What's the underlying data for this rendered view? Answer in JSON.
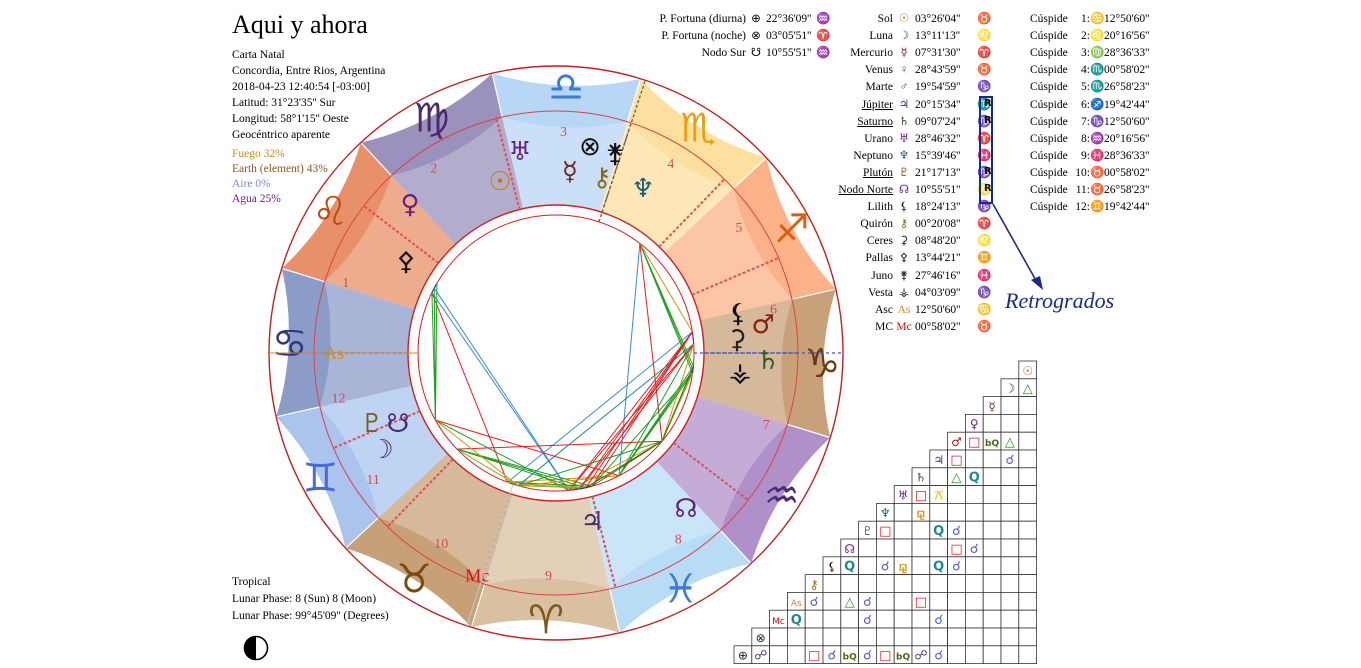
{
  "header": {
    "title": "Aqui y ahora",
    "lines": [
      "Carta Natal",
      "Concordia, Entre Rios, Argentina",
      "2018-04-23 12:40:54 [-03:00]",
      "Latitud: 31°23'35'' Sur",
      "Longitud: 58°1'15'' Oeste",
      "Geocéntrico aparente"
    ]
  },
  "elements": [
    {
      "label": "Fuego 32%",
      "color": "#d08a1e",
      "value": 32
    },
    {
      "label": "Earth (element) 43%",
      "color": "#8a5a1e",
      "value": 43
    },
    {
      "label": "Aire 0%",
      "color": "#7a8ad8",
      "value": 0
    },
    {
      "label": "Agua 25%",
      "color": "#6a2080",
      "value": 25
    }
  ],
  "footer": {
    "lines": [
      "Tropical",
      "Lunar Phase: 8 (Sun) 8 (Moon)",
      "Lunar Phase: 99°45'09'' (Degrees)"
    ]
  },
  "points_table": [
    {
      "name": "P. Fortuna (diurna)",
      "glyph": "⊕",
      "pos": "22°36'09''",
      "sign": "♒",
      "sign_color": "#6a8ad8"
    },
    {
      "name": "P. Fortuna (noche)",
      "glyph": "⊗",
      "pos": "03°05'51''",
      "sign": "♈",
      "sign_color": "#d08a1e"
    },
    {
      "name": "Nodo Sur",
      "glyph": "☋",
      "pos": "10°55'51''",
      "sign": "♒",
      "sign_color": "#6a2080"
    }
  ],
  "planets_table": [
    {
      "name": "Sol",
      "glyph": "☉",
      "glyph_color": "#c87a10",
      "pos": "03°26'04''",
      "sign": "♉",
      "sign_color": "#8a5a1e",
      "retro": false
    },
    {
      "name": "Luna",
      "glyph": "☽",
      "glyph_color": "#4a2a7a",
      "pos": "13°11'13''",
      "sign": "♌",
      "sign_color": "#c87a10",
      "retro": false
    },
    {
      "name": "Mercurio",
      "glyph": "☿",
      "glyph_color": "#6a2a1a",
      "pos": "07°31'30''",
      "sign": "♈",
      "sign_color": "#c87a10",
      "retro": false
    },
    {
      "name": "Venus",
      "glyph": "♀",
      "glyph_color": "#6a2080",
      "pos": "28°43'59''",
      "sign": "♉",
      "sign_color": "#8a5a1e",
      "retro": false
    },
    {
      "name": "Marte",
      "glyph": "♂",
      "glyph_color": "#8a2010",
      "pos": "19°54'59''",
      "sign": "♑",
      "sign_color": "#8a5a1e",
      "retro": false
    },
    {
      "name": "Júpiter",
      "glyph": "♃",
      "glyph_color": "#4a2a6a",
      "pos": "20°15'34''",
      "sign": "♏",
      "sign_color": "#6a8ad8",
      "retro": true
    },
    {
      "name": "Saturno",
      "glyph": "♄",
      "glyph_color": "#2a5a2a",
      "pos": "09°07'24''",
      "sign": "♑",
      "sign_color": "#8a5a1e",
      "retro": true
    },
    {
      "name": "Urano",
      "glyph": "♅",
      "glyph_color": "#6a2080",
      "pos": "28°46'32''",
      "sign": "♈",
      "sign_color": "#c87a10",
      "retro": false
    },
    {
      "name": "Neptuno",
      "glyph": "♆",
      "glyph_color": "#1a5a7a",
      "pos": "15°39'46''",
      "sign": "♓",
      "sign_color": "#6a8ad8",
      "retro": false
    },
    {
      "name": "Plutón",
      "glyph": "♇",
      "glyph_color": "#8a5a1e",
      "pos": "21°17'13''",
      "sign": "♑",
      "sign_color": "#8a5a1e",
      "retro": true
    },
    {
      "name": "Nodo Norte",
      "glyph": "☊",
      "glyph_color": "#6a2080",
      "pos": "10°55'51''",
      "sign": "♌",
      "sign_color": "#c87a10",
      "retro": true
    },
    {
      "name": "Lilith",
      "glyph": "⚸",
      "glyph_color": "#222222",
      "pos": "18°24'13''",
      "sign": "♑",
      "sign_color": "#8a5a1e",
      "retro": false
    },
    {
      "name": "Quirón",
      "glyph": "⚷",
      "glyph_color": "#8a6a10",
      "pos": "00°20'08''",
      "sign": "♈",
      "sign_color": "#c87a10",
      "retro": false
    },
    {
      "name": "Ceres",
      "glyph": "⚳",
      "glyph_color": "#222222",
      "pos": "08°48'20''",
      "sign": "♌",
      "sign_color": "#c87a10",
      "retro": false
    },
    {
      "name": "Pallas",
      "glyph": "⚴",
      "glyph_color": "#222222",
      "pos": "13°44'21''",
      "sign": "♊",
      "sign_color": "#6a8ad8",
      "retro": false
    },
    {
      "name": "Juno",
      "glyph": "⚵",
      "glyph_color": "#222222",
      "pos": "27°46'16''",
      "sign": "♓",
      "sign_color": "#6a8ad8",
      "retro": false
    },
    {
      "name": "Vesta",
      "glyph": "⚶",
      "glyph_color": "#222222",
      "pos": "04°03'09''",
      "sign": "♑",
      "sign_color": "#8a5a1e",
      "retro": false
    },
    {
      "name": "Asc",
      "glyph": "As",
      "glyph_color": "#d08a1e",
      "pos": "12°50'60''",
      "sign": "♋",
      "sign_color": "#6a8ad8",
      "retro": false
    },
    {
      "name": "MC",
      "glyph": "Mc",
      "glyph_color": "#d01010",
      "pos": "00°58'02''",
      "sign": "♉",
      "sign_color": "#8a5a1e",
      "retro": false
    }
  ],
  "retro_marker": "R",
  "retro_label": "Retrogrados",
  "cusps_table": [
    {
      "label": "Cúspide",
      "num": "1:",
      "sign": "♋",
      "sign_color": "#6a8ad8",
      "pos": "12°50'60''"
    },
    {
      "label": "Cúspide",
      "num": "2:",
      "sign": "♌",
      "sign_color": "#c87a10",
      "pos": "20°16'56''"
    },
    {
      "label": "Cúspide",
      "num": "3:",
      "sign": "♍",
      "sign_color": "#8a5a1e",
      "pos": "28°36'33''"
    },
    {
      "label": "Cúspide",
      "num": "4:",
      "sign": "♏",
      "sign_color": "#c87a10",
      "pos": "00°58'02''"
    },
    {
      "label": "Cúspide",
      "num": "5:",
      "sign": "♏",
      "sign_color": "#c87a10",
      "pos": "26°58'23''"
    },
    {
      "label": "Cúspide",
      "num": "6:",
      "sign": "♐",
      "sign_color": "#c87a10",
      "pos": "19°42'44''"
    },
    {
      "label": "Cúspide",
      "num": "7:",
      "sign": "♑",
      "sign_color": "#8a5a1e",
      "pos": "12°50'60''"
    },
    {
      "label": "Cúspide",
      "num": "8:",
      "sign": "♒",
      "sign_color": "#6a2080",
      "pos": "20°16'56''"
    },
    {
      "label": "Cúspide",
      "num": "9:",
      "sign": "♓",
      "sign_color": "#6a8ad8",
      "pos": "28°36'33''"
    },
    {
      "label": "Cúspide",
      "num": "10:",
      "sign": "♉",
      "sign_color": "#8a5a1e",
      "pos": "00°58'02''"
    },
    {
      "label": "Cúspide",
      "num": "11:",
      "sign": "♉",
      "sign_color": "#8a5a1e",
      "pos": "26°58'23''"
    },
    {
      "label": "Cúspide",
      "num": "12:",
      "sign": "♊",
      "sign_color": "#6a8ad8",
      "pos": "19°42'44''"
    }
  ],
  "wheel": {
    "asc_label": "As",
    "mc_label": "Mc",
    "house_numbers": [
      "1",
      "2",
      "3",
      "4",
      "5",
      "6",
      "7",
      "8",
      "9",
      "10",
      "11",
      "12"
    ],
    "signs": [
      {
        "glyph": "♈",
        "color": "#7a5a1e",
        "fill": "#d8c0a0"
      },
      {
        "glyph": "♉",
        "color": "#7a4a10",
        "fill": "#c8a078"
      },
      {
        "glyph": "♊",
        "color": "#4a6ad8",
        "fill": "#aac4ee"
      },
      {
        "glyph": "♋",
        "color": "#2a3a7a",
        "fill": "#8c9cc8"
      },
      {
        "glyph": "♌",
        "color": "#c04a10",
        "fill": "#e8906a"
      },
      {
        "glyph": "♍",
        "color": "#4a2a6a",
        "fill": "#9a92bc"
      },
      {
        "glyph": "♎",
        "color": "#3a7ad8",
        "fill": "#b8d6f6"
      },
      {
        "glyph": "♏",
        "color": "#e8a010",
        "fill": "#fde0a0"
      },
      {
        "glyph": "♐",
        "color": "#d86010",
        "fill": "#fbb288"
      },
      {
        "glyph": "♑",
        "color": "#6a3a10",
        "fill": "#c8a07a"
      },
      {
        "glyph": "♒",
        "color": "#4a2a7a",
        "fill": "#b090c8"
      },
      {
        "glyph": "♓",
        "color": "#3a7ad8",
        "fill": "#b8dcf6"
      }
    ],
    "bodies": [
      {
        "glyph": "♅",
        "color": "#6a2080"
      },
      {
        "glyph": "⊗",
        "color": "#111111"
      },
      {
        "glyph": "⚵",
        "color": "#111111"
      },
      {
        "glyph": "☉",
        "color": "#c87a10"
      },
      {
        "glyph": "☿",
        "color": "#6a2a1a"
      },
      {
        "glyph": "⚷",
        "color": "#8a6a10"
      },
      {
        "glyph": "♆",
        "color": "#1a5a7a"
      },
      {
        "glyph": "♀",
        "color": "#6a2080"
      },
      {
        "glyph": "⚴",
        "color": "#111111"
      },
      {
        "glyph": "☋",
        "color": "#4a2a7a"
      },
      {
        "glyph": "♇",
        "color": "#7a5a1e"
      },
      {
        "glyph": "♂",
        "color": "#8a2010"
      },
      {
        "glyph": "⚸",
        "color": "#111111"
      },
      {
        "glyph": "♄",
        "color": "#2a5a2a"
      },
      {
        "glyph": "⚶",
        "color": "#111111"
      },
      {
        "glyph": "⚳",
        "color": "#222222"
      },
      {
        "glyph": "☊",
        "color": "#6a2080"
      },
      {
        "glyph": "☽",
        "color": "#4a2a7a"
      },
      {
        "glyph": "♃",
        "color": "#4a2a6a"
      },
      {
        "glyph": "⊕",
        "color": "#111111"
      }
    ]
  },
  "aspect_grid": {
    "row_glyphs": [
      "☉",
      "☽",
      "☿",
      "♀",
      "♂",
      "♃",
      "♄",
      "♅",
      "♆",
      "♇",
      "☊",
      "⚸",
      "⚷",
      "As",
      "Mc",
      "⊗",
      "⊕"
    ],
    "row_glyph_colors": [
      "#c87a10",
      "#4a2a7a",
      "#6a2a1a",
      "#6a2080",
      "#8a2010",
      "#4a2a6a",
      "#2a5a2a",
      "#6a2080",
      "#1a5a7a",
      "#8a5a1e",
      "#6a2080",
      "#222222",
      "#8a6a10",
      "#d08a1e",
      "#d01010",
      "#222222",
      "#222222"
    ],
    "aspect_symbols": {
      "tri": {
        "glyph": "△",
        "color": "#20a020"
      },
      "sq": {
        "glyph": "□",
        "color": "#e02020"
      },
      "conj": {
        "glyph": "☌",
        "color": "#4a5ad8"
      },
      "quin": {
        "glyph": "Q",
        "color": "#1a8a8a"
      },
      "bq": {
        "glyph": "bQ",
        "color": "#4a6a10"
      },
      "sesq": {
        "glyph": "⚼",
        "color": "#d89010"
      },
      "yod": {
        "glyph": "⚻",
        "color": "#e8d010"
      },
      "opp": {
        "glyph": "☍",
        "color": "#5a2a8a"
      }
    },
    "cells": [
      [
        "tri"
      ],
      [
        "",
        "",
        "conj"
      ],
      [
        "",
        "",
        "",
        "opp"
      ],
      [
        "sq",
        "bq",
        "tri"
      ],
      [
        "sq",
        "",
        "",
        "conj"
      ],
      [
        "",
        "tri",
        "quin"
      ],
      [
        "sq",
        "yod",
        "",
        ""
      ],
      [
        "",
        "sesq",
        "",
        ""
      ],
      [
        "sq",
        "",
        "",
        "quin",
        "conj"
      ],
      [
        "",
        "",
        "",
        "",
        "",
        "sq",
        "conj"
      ],
      [
        "quin",
        "",
        "conj",
        "sesq",
        "",
        "quin",
        "conj"
      ],
      [
        "",
        "",
        "",
        "",
        "",
        "",
        "",
        ""
      ],
      [
        "conj",
        "",
        "tri",
        "conj",
        "",
        "",
        "sq"
      ],
      [
        "quin",
        "",
        "",
        "",
        "conj",
        "",
        "",
        "",
        "conj"
      ],
      [
        "",
        "",
        "",
        "",
        "",
        "",
        "",
        "",
        "",
        ""
      ],
      [
        "opp",
        "",
        "",
        "sq",
        "conj",
        "bq",
        "conj",
        "sq",
        "bq",
        "opp",
        "conj"
      ],
      [
        "",
        "",
        "conj",
        "",
        "",
        "quin",
        "",
        "",
        "",
        "",
        "sq"
      ]
    ]
  }
}
